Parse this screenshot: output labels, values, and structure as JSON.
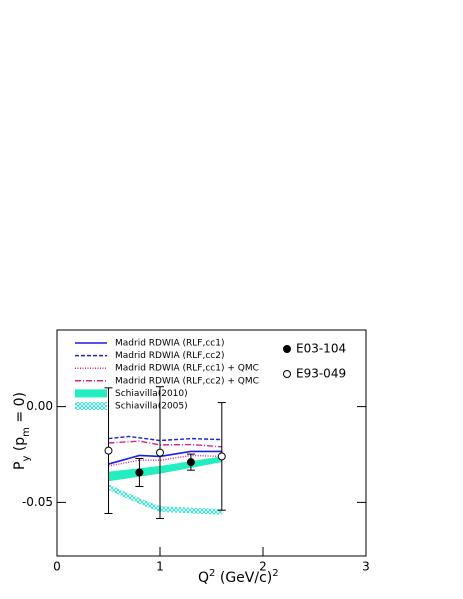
{
  "chart_data": {
    "type": "line",
    "x_label": [
      {
        "text": "Q"
      },
      {
        "text": "2",
        "shift": "sup"
      },
      {
        "text": " (GeV/c)"
      },
      {
        "text": "2",
        "shift": "sup"
      }
    ],
    "y_label": [
      {
        "text": "P"
      },
      {
        "text": "y",
        "shift": "sub"
      },
      {
        "text": " (p"
      },
      {
        "text": "m",
        "shift": "sub"
      },
      {
        "text": " = 0)"
      }
    ],
    "xlim": [
      0,
      3
    ],
    "ylim": [
      -0.078,
      0.04
    ],
    "xticks": [
      0,
      1,
      2,
      3
    ],
    "yticks": [
      -0.05,
      {
        "value": 0,
        "label": "0.00"
      }
    ],
    "series": [
      {
        "name": "Madrid RDWIA (RLF,cc1)",
        "color": "#1f1fe0",
        "style": "solid",
        "x": [
          0.5,
          0.8,
          1.0,
          1.3,
          1.6
        ],
        "values": [
          -0.03,
          -0.0255,
          -0.026,
          -0.0234,
          -0.0234
        ]
      },
      {
        "name": "Madrid RDWIA (RLF,cc2)",
        "color": "#1f1fe0",
        "style": "dashed",
        "x": [
          0.5,
          0.7,
          1.0,
          1.3,
          1.6
        ],
        "values": [
          -0.0167,
          -0.0156,
          -0.0177,
          -0.0167,
          -0.0172
        ]
      },
      {
        "name": "Madrid RDWIA (RLF,cc1) + QMC",
        "color": "#e0208a",
        "style": "dotted",
        "x": [
          0.5,
          0.8,
          1.0,
          1.3,
          1.6
        ],
        "values": [
          -0.031,
          -0.028,
          -0.028,
          -0.0255,
          -0.026
        ]
      },
      {
        "name": "Madrid RDWIA (RLF,cc2) + QMC",
        "color": "#e0208a",
        "style": "dashdot",
        "x": [
          0.5,
          0.8,
          1.0,
          1.3,
          1.6
        ],
        "values": [
          -0.019,
          -0.018,
          -0.02,
          -0.0198,
          -0.021
        ]
      },
      {
        "name": "Schiavilla(2010)",
        "color": "#22eec0",
        "style": "band",
        "x": [
          0.5,
          1.0,
          1.6
        ],
        "low": [
          -0.039,
          -0.035,
          -0.029
        ],
        "high": [
          -0.034,
          -0.031,
          -0.026
        ]
      },
      {
        "name": "Schiavilla(2005)",
        "color": "#22ddcc",
        "style": "hatched",
        "x": [
          0.5,
          0.7,
          0.9,
          1.0,
          1.2,
          1.6
        ],
        "low": [
          -0.0435,
          -0.0485,
          -0.053,
          -0.055,
          -0.0555,
          -0.0565
        ],
        "high": [
          -0.0405,
          -0.0455,
          -0.05,
          -0.052,
          -0.0525,
          -0.0535
        ]
      }
    ],
    "points": [
      {
        "name": "E03-104",
        "marker": "filled",
        "x": [
          0.8,
          1.3
        ],
        "values": [
          -0.0344,
          -0.029
        ],
        "errors": [
          0.0073,
          0.0042
        ]
      },
      {
        "name": "E93-049",
        "marker": "open",
        "x": [
          0.5,
          1.0,
          1.6
        ],
        "values": [
          -0.023,
          -0.024,
          -0.026
        ],
        "errors": [
          0.0328,
          0.0344,
          0.0281
        ]
      }
    ]
  }
}
